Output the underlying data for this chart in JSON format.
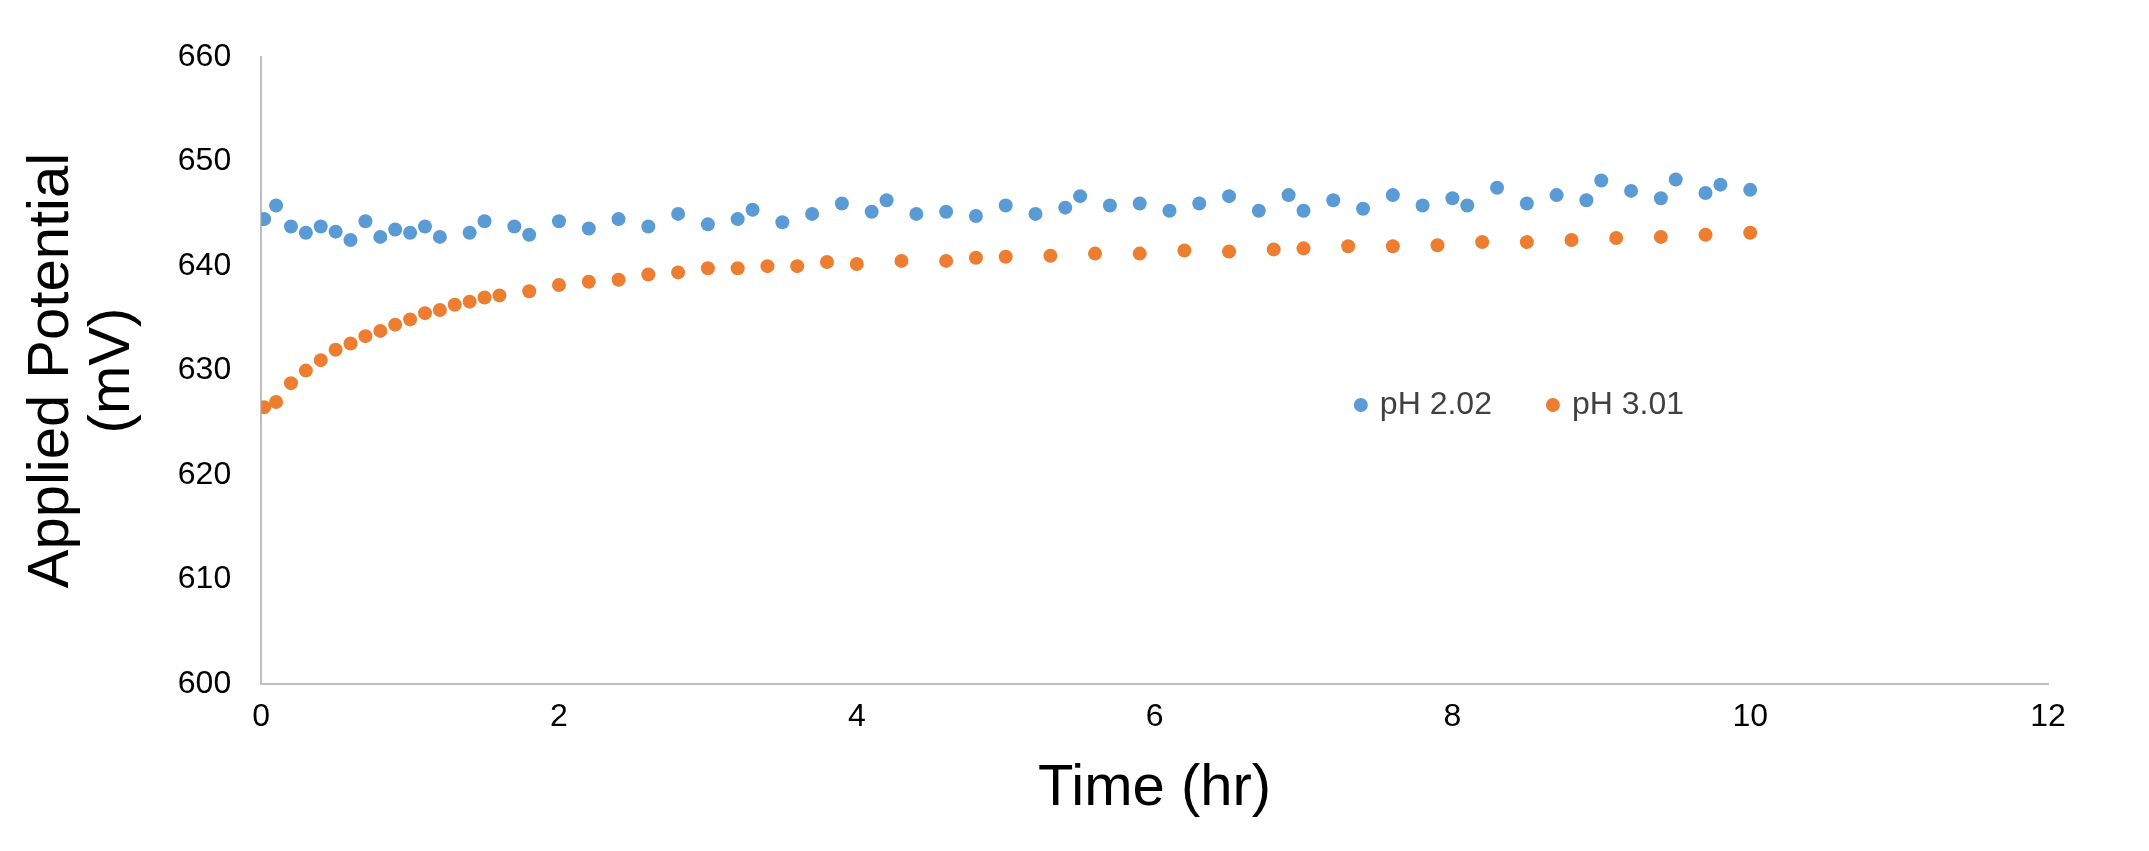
{
  "chart_data": {
    "type": "scatter",
    "xlabel": "Time (hr)",
    "ylabel": "Applied Potential (mV)",
    "xlim": [
      0,
      12
    ],
    "xticks": [
      0,
      2,
      4,
      6,
      8,
      10,
      12
    ],
    "ylim": [
      600,
      660
    ],
    "yticks": [
      600,
      610,
      620,
      630,
      640,
      650,
      660
    ],
    "grid": false,
    "legend": "right",
    "marker": "circle",
    "series": [
      {
        "name": "pH 2.02",
        "color": "#5b9bd5",
        "x": [
          0.02,
          0.1,
          0.2,
          0.3,
          0.4,
          0.5,
          0.6,
          0.7,
          0.8,
          0.9,
          1.0,
          1.1,
          1.2,
          1.4,
          1.5,
          1.7,
          1.8,
          2.0,
          2.2,
          2.4,
          2.6,
          2.8,
          3.0,
          3.2,
          3.3,
          3.5,
          3.7,
          3.9,
          4.1,
          4.2,
          4.4,
          4.6,
          4.8,
          5.0,
          5.2,
          5.4,
          5.5,
          5.7,
          5.9,
          6.1,
          6.3,
          6.5,
          6.7,
          6.9,
          7.0,
          7.2,
          7.4,
          7.6,
          7.8,
          8.0,
          8.1,
          8.3,
          8.5,
          8.7,
          8.9,
          9.0,
          9.2,
          9.4,
          9.5,
          9.7,
          9.8,
          10.0
        ],
        "values": [
          644.5,
          645.8,
          643.8,
          643.2,
          643.8,
          643.3,
          642.5,
          644.3,
          642.8,
          643.5,
          643.2,
          643.8,
          642.8,
          643.2,
          644.3,
          643.8,
          643.0,
          644.3,
          643.6,
          644.5,
          643.8,
          645.0,
          644.0,
          644.5,
          645.4,
          644.2,
          645.0,
          646.0,
          645.2,
          646.3,
          645.0,
          645.2,
          644.8,
          645.8,
          645.0,
          645.6,
          646.7,
          645.8,
          646.0,
          645.3,
          646.0,
          646.7,
          645.3,
          646.8,
          645.3,
          646.3,
          645.5,
          646.8,
          645.8,
          646.5,
          645.8,
          647.5,
          646.0,
          646.8,
          646.3,
          648.2,
          647.2,
          646.5,
          648.3,
          647.0,
          647.8,
          647.3
        ]
      },
      {
        "name": "pH 3.01",
        "color": "#ed7d31",
        "x": [
          0.02,
          0.1,
          0.2,
          0.3,
          0.4,
          0.5,
          0.6,
          0.7,
          0.8,
          0.9,
          1.0,
          1.1,
          1.2,
          1.3,
          1.4,
          1.5,
          1.6,
          1.8,
          2.0,
          2.2,
          2.4,
          2.6,
          2.8,
          3.0,
          3.2,
          3.4,
          3.6,
          3.8,
          4.0,
          4.3,
          4.6,
          4.8,
          5.0,
          5.3,
          5.6,
          5.9,
          6.2,
          6.5,
          6.8,
          7.0,
          7.3,
          7.6,
          7.9,
          8.2,
          8.5,
          8.8,
          9.1,
          9.4,
          9.7,
          10.0
        ],
        "values": [
          626.5,
          627.0,
          628.8,
          630.0,
          631.0,
          632.0,
          632.6,
          633.3,
          633.8,
          634.4,
          634.9,
          635.5,
          635.8,
          636.3,
          636.6,
          637.0,
          637.2,
          637.6,
          638.2,
          638.5,
          638.7,
          639.2,
          639.4,
          639.8,
          639.8,
          640.0,
          640.0,
          640.4,
          640.2,
          640.5,
          640.5,
          640.8,
          640.9,
          641.0,
          641.2,
          641.2,
          641.5,
          641.4,
          641.6,
          641.7,
          641.9,
          641.9,
          642.0,
          642.3,
          642.3,
          642.5,
          642.7,
          642.8,
          643.0,
          643.2
        ]
      }
    ]
  }
}
